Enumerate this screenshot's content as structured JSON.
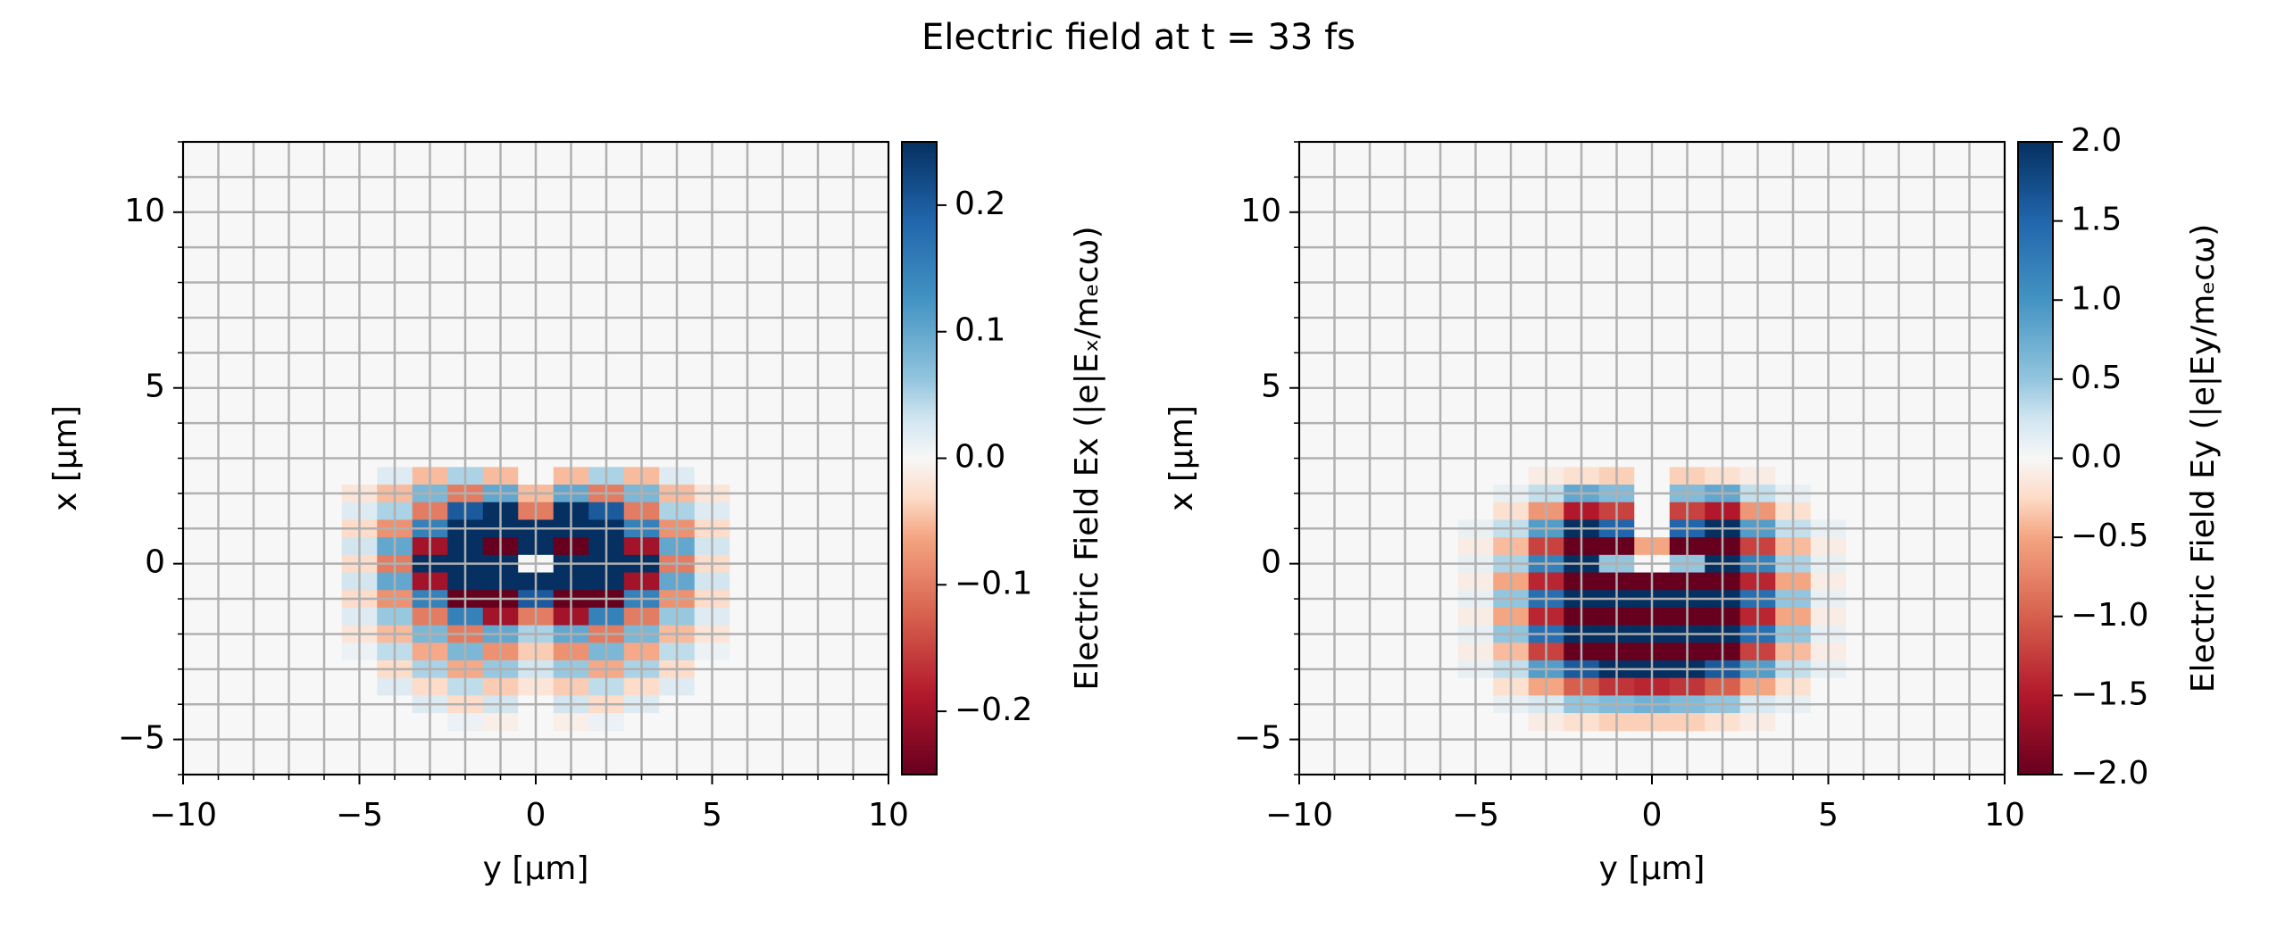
{
  "title": "Electric field at t = 33 fs",
  "chart_data": [
    {
      "type": "heatmap",
      "colormap": "RdBu",
      "grid": true,
      "xlabel": "y [µm]",
      "ylabel": "x [µm]",
      "colorbar_label": "Electric Field Ex (|e|Eₓ/mₑcω)",
      "xlim": [
        -10,
        10
      ],
      "ylim": [
        -6,
        12
      ],
      "xticks": [
        {
          "value": -10,
          "label": "−10"
        },
        {
          "value": -5,
          "label": "−5"
        },
        0,
        5,
        10
      ],
      "yticks": [
        {
          "value": -5,
          "label": "−5"
        },
        0,
        5,
        10
      ],
      "xminorticks": [
        -10,
        -9,
        -8,
        -7,
        -6,
        -5,
        -4,
        -3,
        -2,
        -1,
        0,
        1,
        2,
        3,
        4,
        5,
        6,
        7,
        8,
        9,
        10
      ],
      "yminorticks": [
        -6,
        -5,
        -4,
        -3,
        -2,
        -1,
        0,
        1,
        2,
        3,
        4,
        5,
        6,
        7,
        8,
        9,
        10,
        11,
        12
      ],
      "clim": [
        -0.25,
        0.25
      ],
      "cticks": [
        {
          "value": -0.2,
          "label": "−0.2"
        },
        {
          "value": -0.1,
          "label": "−0.1"
        },
        {
          "value": 0,
          "label": "0.0"
        },
        0.1,
        0.2
      ],
      "x": [
        -6,
        -5,
        -4,
        -3,
        -2,
        -1,
        0,
        1,
        2,
        3,
        4,
        5,
        6
      ],
      "y": [
        2.5,
        2,
        1.5,
        1,
        0.5,
        0,
        -0.5,
        -1,
        -1.5,
        -2,
        -2.5,
        -3,
        -3.5,
        -4,
        -4.5
      ],
      "z": [
        [
          0,
          0,
          0.02,
          -0.05,
          0.05,
          -0.05,
          0,
          -0.05,
          0.05,
          -0.05,
          0.02,
          0,
          0
        ],
        [
          0,
          -0.02,
          -0.05,
          0.08,
          -0.1,
          0.1,
          -0.05,
          0.1,
          -0.1,
          0.08,
          -0.05,
          -0.02,
          0
        ],
        [
          0,
          0.02,
          0.05,
          -0.1,
          0.2,
          0.25,
          -0.1,
          0.25,
          0.2,
          -0.1,
          0.05,
          0.02,
          0
        ],
        [
          0,
          -0.03,
          -0.08,
          0.15,
          0.25,
          0.25,
          0.25,
          0.25,
          0.25,
          0.15,
          -0.08,
          -0.03,
          0
        ],
        [
          0,
          0.03,
          0.1,
          -0.2,
          0.25,
          -0.25,
          0.25,
          -0.25,
          0.25,
          -0.2,
          0.1,
          0.03,
          0
        ],
        [
          0,
          -0.03,
          -0.1,
          0.25,
          0.25,
          0.25,
          0,
          0.25,
          0.25,
          0.25,
          -0.1,
          -0.03,
          0
        ],
        [
          0,
          0.03,
          0.1,
          -0.2,
          0.25,
          0.25,
          0.25,
          0.25,
          0.25,
          -0.2,
          0.1,
          0.03,
          0
        ],
        [
          0,
          -0.03,
          -0.08,
          0.15,
          -0.25,
          -0.25,
          0.2,
          -0.25,
          -0.25,
          0.15,
          -0.08,
          -0.03,
          0
        ],
        [
          0,
          0.02,
          0.06,
          -0.1,
          0.15,
          -0.2,
          -0.1,
          -0.2,
          0.15,
          -0.1,
          0.06,
          0.02,
          0
        ],
        [
          0,
          -0.02,
          -0.05,
          0.08,
          -0.1,
          0.1,
          0.05,
          0.1,
          -0.1,
          0.08,
          -0.05,
          -0.02,
          0
        ],
        [
          0,
          0.01,
          0.04,
          -0.06,
          0.08,
          -0.08,
          -0.04,
          -0.08,
          0.08,
          -0.06,
          0.04,
          0.01,
          0
        ],
        [
          0,
          0,
          -0.03,
          0.05,
          -0.06,
          0.06,
          0.03,
          0.06,
          -0.06,
          0.05,
          -0.03,
          0,
          0
        ],
        [
          0,
          0,
          0.02,
          -0.03,
          0.04,
          -0.04,
          -0.02,
          -0.04,
          0.04,
          -0.03,
          0.02,
          0,
          0
        ],
        [
          0,
          0,
          0,
          0.02,
          -0.03,
          0.03,
          0,
          0.03,
          -0.03,
          0.02,
          0,
          0,
          0
        ],
        [
          0,
          0,
          0,
          0,
          0.01,
          -0.01,
          0,
          -0.01,
          0.01,
          0,
          0,
          0,
          0
        ]
      ]
    },
    {
      "type": "heatmap",
      "colormap": "RdBu",
      "grid": true,
      "xlabel": "y [µm]",
      "ylabel": "x [µm]",
      "colorbar_label": "Electric Field Ey (|e|Ey/mₑcω)",
      "xlim": [
        -10,
        10
      ],
      "ylim": [
        -6,
        12
      ],
      "xticks": [
        {
          "value": -10,
          "label": "−10"
        },
        {
          "value": -5,
          "label": "−5"
        },
        0,
        5,
        10
      ],
      "yticks": [
        {
          "value": -5,
          "label": "−5"
        },
        0,
        5,
        10
      ],
      "xminorticks": [
        -10,
        -9,
        -8,
        -7,
        -6,
        -5,
        -4,
        -3,
        -2,
        -1,
        0,
        1,
        2,
        3,
        4,
        5,
        6,
        7,
        8,
        9,
        10
      ],
      "yminorticks": [
        -6,
        -5,
        -4,
        -3,
        -2,
        -1,
        0,
        1,
        2,
        3,
        4,
        5,
        6,
        7,
        8,
        9,
        10,
        11,
        12
      ],
      "clim": [
        -2,
        2
      ],
      "cticks": [
        {
          "value": -2,
          "label": "−2.0"
        },
        {
          "value": -1.5,
          "label": "−1.5"
        },
        {
          "value": -1,
          "label": "−1.0"
        },
        {
          "value": -0.5,
          "label": "−0.5"
        },
        {
          "value": 0,
          "label": "0.0"
        },
        0.5,
        {
          "value": 1,
          "label": "1.0"
        },
        1.5,
        {
          "value": 2,
          "label": "2.0"
        }
      ],
      "x": [
        -6,
        -5,
        -4,
        -3,
        -2,
        -1,
        0,
        1,
        2,
        3,
        4,
        5,
        6
      ],
      "y": [
        2.5,
        2,
        1.5,
        1,
        0.5,
        0,
        -0.5,
        -1,
        -1.5,
        -2,
        -2.5,
        -3,
        -3.5,
        -4,
        -4.5
      ],
      "z": [
        [
          0,
          0,
          0,
          -0.1,
          -0.2,
          -0.3,
          0,
          -0.3,
          -0.2,
          -0.1,
          0,
          0,
          0
        ],
        [
          0,
          0,
          0.1,
          0.3,
          0.8,
          0.6,
          0,
          0.6,
          0.8,
          0.3,
          0.1,
          0,
          0
        ],
        [
          0,
          0,
          -0.2,
          -0.6,
          -1.5,
          -1.2,
          0,
          -1.2,
          -1.5,
          -0.6,
          -0.2,
          0,
          0
        ],
        [
          0,
          0.1,
          0.3,
          0.9,
          2,
          1.5,
          0,
          1.5,
          2,
          0.9,
          0.3,
          0.1,
          0
        ],
        [
          0,
          -0.1,
          -0.4,
          -1.2,
          -2,
          -2,
          -0.5,
          -2,
          -2,
          -1.2,
          -0.4,
          -0.1,
          0
        ],
        [
          0,
          0.1,
          0.4,
          1.2,
          2,
          0.5,
          0,
          0.5,
          2,
          1.2,
          0.4,
          0.1,
          0
        ],
        [
          0,
          -0.1,
          -0.5,
          -1.4,
          -2,
          -2,
          -2,
          -2,
          -2,
          -1.4,
          -0.5,
          -0.1,
          0
        ],
        [
          0,
          0.1,
          0.5,
          1.4,
          2,
          2,
          2,
          2,
          2,
          1.4,
          0.5,
          0.1,
          0
        ],
        [
          0,
          -0.1,
          -0.5,
          -1.4,
          -2,
          -2,
          -2,
          -2,
          -2,
          -1.4,
          -0.5,
          -0.1,
          0
        ],
        [
          0,
          0.1,
          0.5,
          1.4,
          2,
          2,
          2,
          2,
          2,
          1.4,
          0.5,
          0.1,
          0
        ],
        [
          0,
          -0.1,
          -0.4,
          -1.2,
          -2,
          -2,
          -2,
          -2,
          -2,
          -1.2,
          -0.4,
          -0.1,
          0
        ],
        [
          0,
          0.1,
          0.3,
          0.9,
          1.6,
          2,
          2,
          2,
          1.6,
          0.9,
          0.3,
          0.1,
          0
        ],
        [
          0,
          0,
          -0.2,
          -0.5,
          -1,
          -1.3,
          -1.4,
          -1.3,
          -1,
          -0.5,
          -0.2,
          0,
          0
        ],
        [
          0,
          0,
          0.1,
          0.2,
          0.5,
          0.6,
          0.7,
          0.6,
          0.5,
          0.2,
          0.1,
          0,
          0
        ],
        [
          0,
          0,
          0,
          -0.1,
          -0.2,
          -0.3,
          -0.3,
          -0.3,
          -0.2,
          -0.1,
          0,
          0,
          0
        ]
      ]
    }
  ]
}
